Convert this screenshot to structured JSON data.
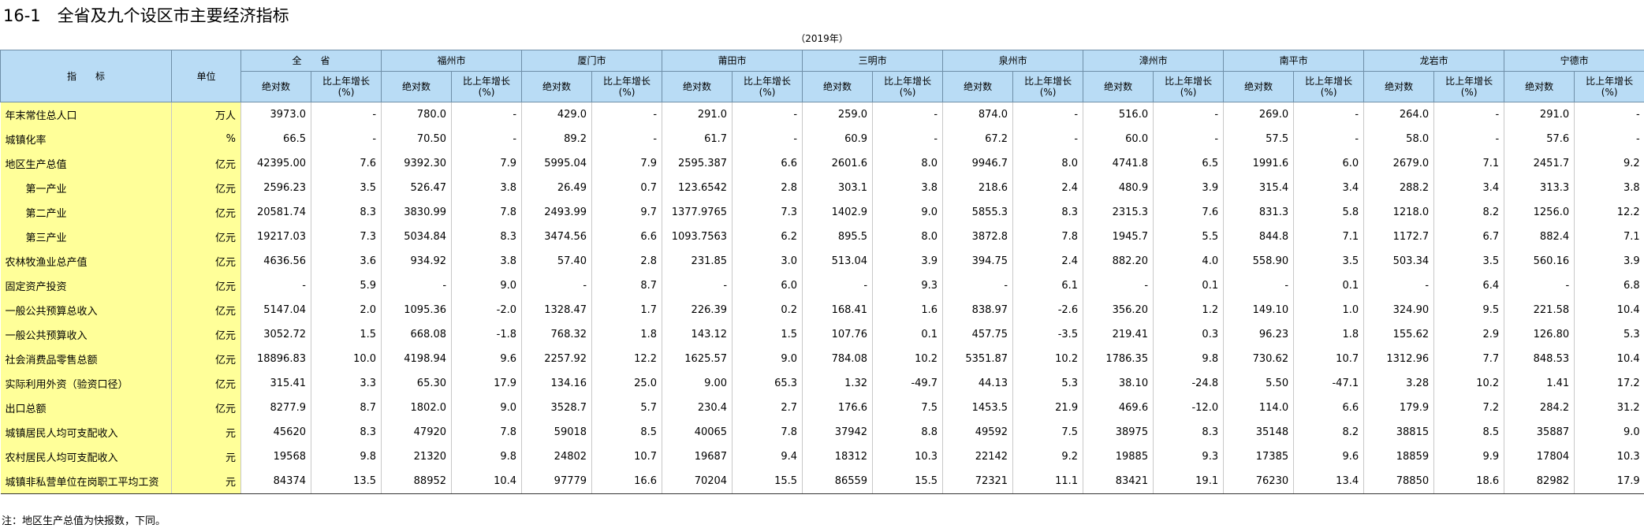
{
  "title": "16-1　全省及九个设区市主要经济指标",
  "subtitle": "（2019年）",
  "header": {
    "indicator": "指　　标",
    "unit": "单位",
    "regions": [
      "全　　省",
      "福州市",
      "厦门市",
      "莆田市",
      "三明市",
      "泉州市",
      "漳州市",
      "南平市",
      "龙岩市",
      "宁德市"
    ],
    "columns": [
      "绝对数",
      "比上年增长\n(%)"
    ]
  },
  "table": {
    "rows": [
      [
        "年末常住总人口",
        "万人",
        "3973.0",
        "-",
        "780.0",
        "-",
        "429.0",
        "-",
        "291.0",
        "-",
        "259.0",
        "-",
        "874.0",
        "-",
        "516.0",
        "-",
        "269.0",
        "-",
        "264.0",
        "-",
        "291.0",
        "-"
      ],
      [
        "城镇化率",
        "%",
        "66.5",
        "-",
        "70.50",
        "-",
        "89.2",
        "-",
        "61.7",
        "-",
        "60.9",
        "-",
        "67.2",
        "-",
        "60.0",
        "-",
        "57.5",
        "-",
        "58.0",
        "-",
        "57.6",
        "-"
      ],
      [
        "地区生产总值",
        "亿元",
        "42395.00",
        "7.6",
        "9392.30",
        "7.9",
        "5995.04",
        "7.9",
        "2595.387",
        "6.6",
        "2601.6",
        "8.0",
        "9946.7",
        "8.0",
        "4741.8",
        "6.5",
        "1991.6",
        "6.0",
        "2679.0",
        "7.1",
        "2451.7",
        "9.2"
      ],
      [
        "　　第一产业",
        "亿元",
        "2596.23",
        "3.5",
        "526.47",
        "3.8",
        "26.49",
        "0.7",
        "123.6542",
        "2.8",
        "303.1",
        "3.8",
        "218.6",
        "2.4",
        "480.9",
        "3.9",
        "315.4",
        "3.4",
        "288.2",
        "3.4",
        "313.3",
        "3.8"
      ],
      [
        "　　第二产业",
        "亿元",
        "20581.74",
        "8.3",
        "3830.99",
        "7.8",
        "2493.99",
        "9.7",
        "1377.9765",
        "7.3",
        "1402.9",
        "9.0",
        "5855.3",
        "8.3",
        "2315.3",
        "7.6",
        "831.3",
        "5.8",
        "1218.0",
        "8.2",
        "1256.0",
        "12.2"
      ],
      [
        "　　第三产业",
        "亿元",
        "19217.03",
        "7.3",
        "5034.84",
        "8.3",
        "3474.56",
        "6.6",
        "1093.7563",
        "6.2",
        "895.5",
        "8.0",
        "3872.8",
        "7.8",
        "1945.7",
        "5.5",
        "844.8",
        "7.1",
        "1172.7",
        "6.7",
        "882.4",
        "7.1"
      ],
      [
        "农林牧渔业总产值",
        "亿元",
        "4636.56",
        "3.6",
        "934.92",
        "3.8",
        "57.40",
        "2.8",
        "231.85",
        "3.0",
        "513.04",
        "3.9",
        "394.75",
        "2.4",
        "882.20",
        "4.0",
        "558.90",
        "3.5",
        "503.34",
        "3.5",
        "560.16",
        "3.9"
      ],
      [
        "固定资产投资",
        "亿元",
        "-",
        "5.9",
        "-",
        "9.0",
        "-",
        "8.7",
        "-",
        "6.0",
        "-",
        "9.3",
        "-",
        "6.1",
        "-",
        "0.1",
        "-",
        "0.1",
        "-",
        "6.4",
        "-",
        "6.8"
      ],
      [
        "一般公共预算总收入",
        "亿元",
        "5147.04",
        "2.0",
        "1095.36",
        "-2.0",
        "1328.47",
        "1.7",
        "226.39",
        "0.2",
        "168.41",
        "1.6",
        "838.97",
        "-2.6",
        "356.20",
        "1.2",
        "149.10",
        "1.0",
        "324.90",
        "9.5",
        "221.58",
        "10.4"
      ],
      [
        "一般公共预算收入",
        "亿元",
        "3052.72",
        "1.5",
        "668.08",
        "-1.8",
        "768.32",
        "1.8",
        "143.12",
        "1.5",
        "107.76",
        "0.1",
        "457.75",
        "-3.5",
        "219.41",
        "0.3",
        "96.23",
        "1.8",
        "155.62",
        "2.9",
        "126.80",
        "5.3"
      ],
      [
        "社会消费品零售总额",
        "亿元",
        "18896.83",
        "10.0",
        "4198.94",
        "9.6",
        "2257.92",
        "12.2",
        "1625.57",
        "9.0",
        "784.08",
        "10.2",
        "5351.87",
        "10.2",
        "1786.35",
        "9.8",
        "730.62",
        "10.7",
        "1312.96",
        "7.7",
        "848.53",
        "10.4"
      ],
      [
        "实际利用外资（验资口径）",
        "亿元",
        "315.41",
        "3.3",
        "65.30",
        "17.9",
        "134.16",
        "25.0",
        "9.00",
        "65.3",
        "1.32",
        "-49.7",
        "44.13",
        "5.3",
        "38.10",
        "-24.8",
        "5.50",
        "-47.1",
        "3.28",
        "10.2",
        "1.41",
        "17.2"
      ],
      [
        "出口总额",
        "亿元",
        "8277.9",
        "8.7",
        "1802.0",
        "9.0",
        "3528.7",
        "5.7",
        "230.4",
        "2.7",
        "176.6",
        "7.5",
        "1453.5",
        "21.9",
        "469.6",
        "-12.0",
        "114.0",
        "6.6",
        "179.9",
        "7.2",
        "284.2",
        "31.2"
      ],
      [
        "城镇居民人均可支配收入",
        "元",
        "45620",
        "8.3",
        "47920",
        "7.8",
        "59018",
        "8.5",
        "40065",
        "7.8",
        "37942",
        "8.8",
        "49592",
        "7.5",
        "38975",
        "8.3",
        "35148",
        "8.2",
        "38815",
        "8.5",
        "35887",
        "9.0"
      ],
      [
        "农村居民人均可支配收入",
        "元",
        "19568",
        "9.8",
        "21320",
        "9.8",
        "24802",
        "10.7",
        "19687",
        "9.4",
        "18312",
        "10.3",
        "22142",
        "9.2",
        "19885",
        "9.3",
        "17385",
        "9.6",
        "18859",
        "9.9",
        "17804",
        "10.3"
      ],
      [
        "城镇非私营单位在岗职工平均工资",
        "元",
        "84374",
        "13.5",
        "88952",
        "10.4",
        "97779",
        "16.6",
        "70204",
        "15.5",
        "86559",
        "15.5",
        "72321",
        "11.1",
        "83421",
        "19.1",
        "76230",
        "13.4",
        "78850",
        "18.6",
        "82982",
        "17.9"
      ]
    ]
  },
  "note": "注：地区生产总值为快报数，下同。"
}
